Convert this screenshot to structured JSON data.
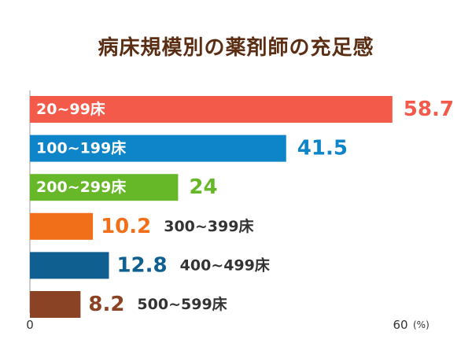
{
  "chart_data": {
    "type": "bar",
    "orientation": "horizontal",
    "title": "病床規模別の薬剤師の充足感",
    "categories": [
      "20~99床",
      "100~199床",
      "200~299床",
      "300~399床",
      "400~499床",
      "500~599床"
    ],
    "values": [
      58.7,
      41.5,
      24,
      10.2,
      12.8,
      8.2
    ],
    "value_labels": [
      "58.7",
      "41.5",
      "24",
      "10.2",
      "12.8",
      "8.2"
    ],
    "colors": [
      "#f35a4a",
      "#0e84c9",
      "#67b829",
      "#f26f19",
      "#0f5f91",
      "#8a4324"
    ],
    "xlim": [
      0,
      60
    ],
    "xticks": [
      "0",
      "60"
    ],
    "unit": "(%)",
    "grid": false,
    "legend": "none"
  }
}
